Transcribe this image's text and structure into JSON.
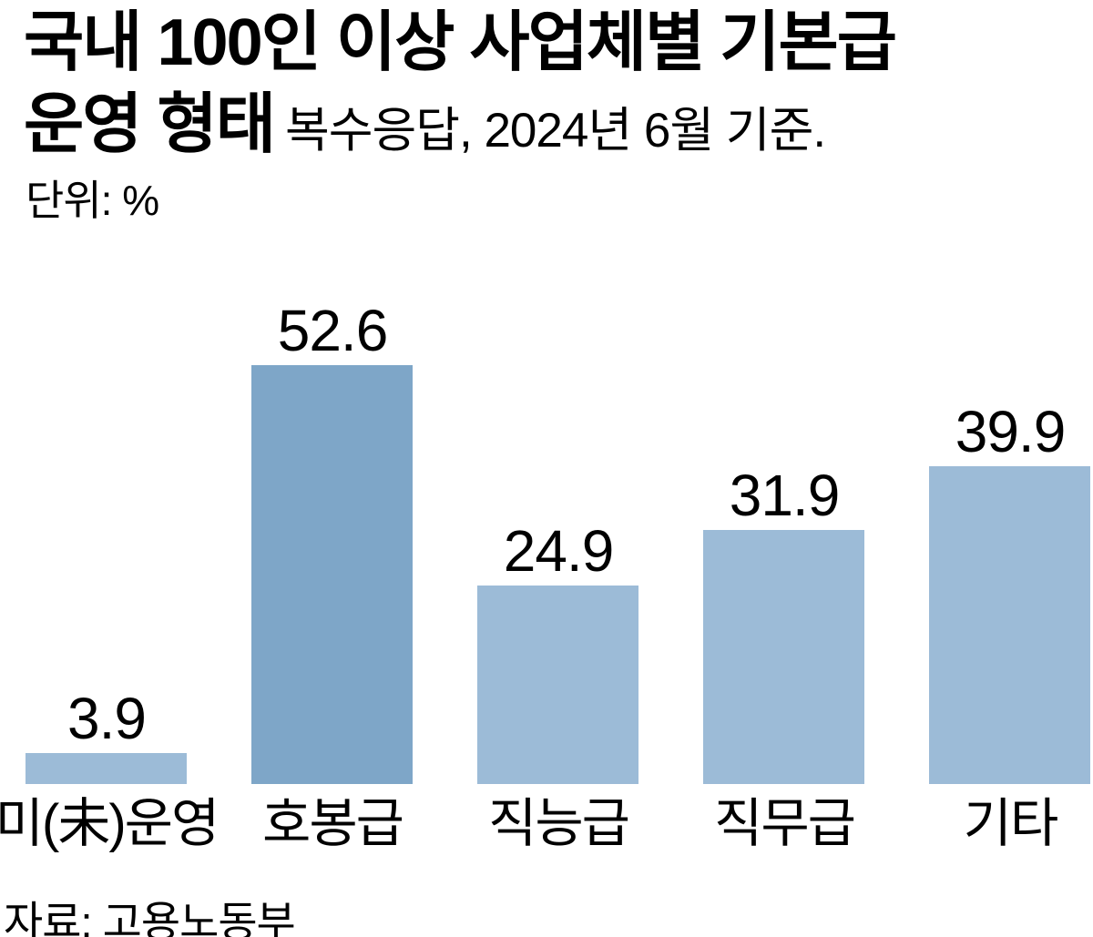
{
  "header": {
    "title_line1": "국내 100인 이상 사업체별 기본급",
    "title_line2": "운영 형태",
    "subtitle": "복수응답, 2024년 6월 기준.",
    "unit_label": "단위: %"
  },
  "chart_data": {
    "type": "bar",
    "title": "국내 100인 이상 사업체별 기본급 운영 형태",
    "subtitle": "복수응답, 2024년 6월 기준.",
    "unit": "%",
    "categories": [
      "미(未)운영",
      "호봉급",
      "직능급",
      "직무급",
      "기타"
    ],
    "values": [
      3.9,
      52.6,
      24.9,
      31.9,
      39.9
    ],
    "value_labels_shown": true,
    "bar_colors": [
      "#9CBBD7",
      "#7EA6C8",
      "#9CBBD7",
      "#9CBBD7",
      "#9CBBD7"
    ],
    "highlight_index": 1,
    "xlabel": "",
    "ylabel": "단위: %",
    "ylim": [
      0,
      57
    ],
    "grid": false,
    "axes_shown": false,
    "legend_position": "none"
  },
  "footer": {
    "source": "자료: 고용노동부"
  },
  "colors": {
    "background": "#FFFFFF",
    "text": "#000000",
    "bar_light": "#9CBBD7",
    "bar_dark": "#7EA6C8"
  }
}
